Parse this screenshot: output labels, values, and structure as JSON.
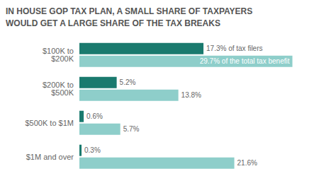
{
  "chart_data": {
    "type": "bar",
    "orientation": "horizontal",
    "title": "IN HOUSE GOP TAX PLAN, A SMALL SHARE OF TAXPAYERS\nWOULD GET A LARGE SHARE OF THE TAX BREAKS",
    "categories": [
      "$100K to $200K",
      "$200K to $500K",
      "$500K to $1M",
      "$1M and over"
    ],
    "series": [
      {
        "color": "#1a7a6e",
        "values": [
          17.3,
          5.2,
          0.6,
          0.3
        ],
        "value_labels": [
          "17.3% of tax filers",
          "5.2%",
          "0.6%",
          "0.3%"
        ]
      },
      {
        "color": "#8ececa",
        "values": [
          29.7,
          13.8,
          5.7,
          21.6
        ],
        "value_labels": [
          "29.7% of the total tax benefit",
          "13.8%",
          "5.7%",
          "21.6%"
        ]
      }
    ],
    "xlim": [
      0,
      34
    ],
    "grid": false,
    "data_labels": true,
    "tick_labels": "y"
  }
}
